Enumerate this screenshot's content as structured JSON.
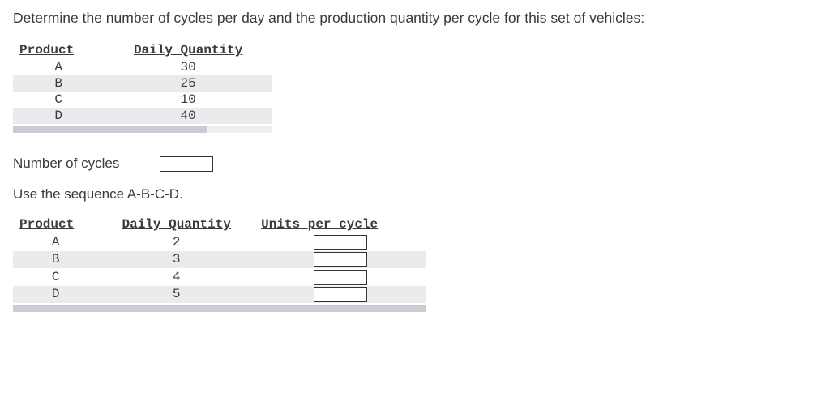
{
  "question": "Determine the number of cycles per day and the production quantity per cycle for this set of vehicles:",
  "table1": {
    "headers": {
      "product": "Product",
      "qty": "Daily Quantity"
    },
    "rows": [
      {
        "p": "A",
        "q": "30"
      },
      {
        "p": "B",
        "q": "25"
      },
      {
        "p": "C",
        "q": "10"
      },
      {
        "p": "D",
        "q": "40"
      }
    ]
  },
  "cycles_label": "Number of cycles",
  "cycles_value": "",
  "sequence_label": "Use the sequence A-B-C-D.",
  "table2": {
    "headers": {
      "product": "Product",
      "qty": "Daily Quantity",
      "upc": "Units per cycle"
    },
    "rows": [
      {
        "p": "A",
        "q": "2",
        "u": ""
      },
      {
        "p": "B",
        "q": "3",
        "u": ""
      },
      {
        "p": "C",
        "q": "4",
        "u": ""
      },
      {
        "p": "D",
        "q": "5",
        "u": ""
      }
    ]
  },
  "colors": {
    "row_alt": "#eceaed",
    "scrollbar_track": "#f0eef1",
    "scrollbar_thumb": "#cfc9d3",
    "text": "#3a3a3a"
  }
}
